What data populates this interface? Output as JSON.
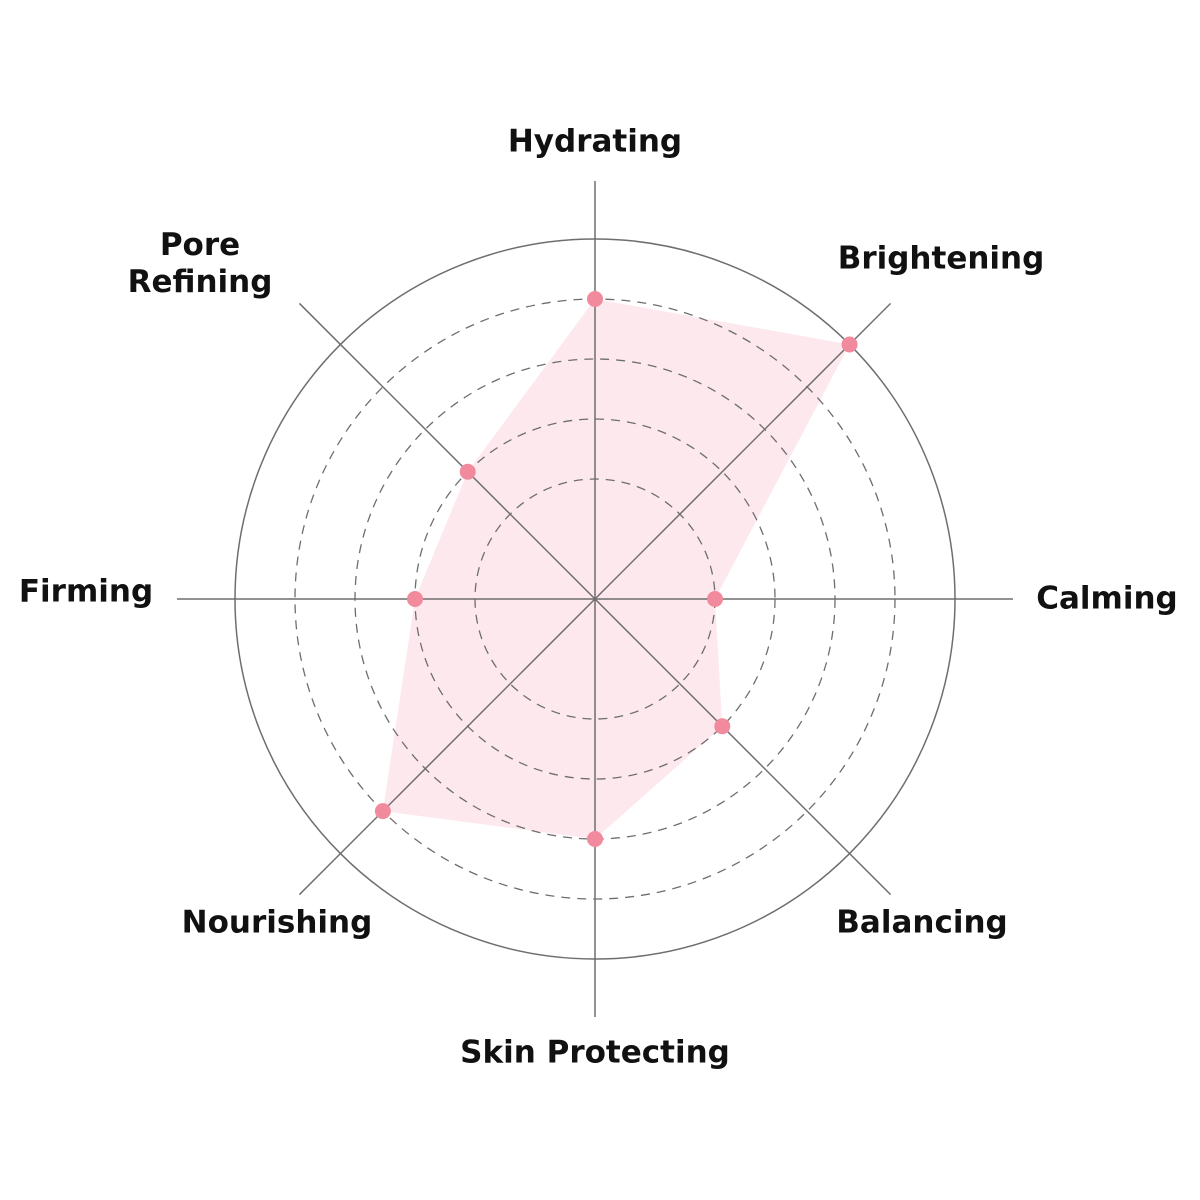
{
  "chart_data": {
    "type": "radar",
    "categories": [
      "Hydrating",
      "Brightening",
      "Calming",
      "Balancing",
      "Skin Protecting",
      "Nourishing",
      "Firming",
      "Pore Refining"
    ],
    "values": [
      5,
      6,
      2,
      3,
      4,
      5,
      3,
      3
    ],
    "rlim": [
      0,
      6
    ],
    "dashed_rings": [
      2,
      3,
      4,
      5
    ],
    "grid": true,
    "colors": {
      "fill": "#fde8ee",
      "point": "#f08a9c",
      "axis": "#6e6e6e"
    }
  },
  "labels": {
    "hydrating": "Hydrating",
    "brightening": "Brightening",
    "calming": "Calming",
    "balancing": "Balancing",
    "skin_protecting": "Skin Protecting",
    "nourishing": "Nourishing",
    "firming": "Firming",
    "pore_refining_1": "Pore",
    "pore_refining_2": "Refining"
  }
}
